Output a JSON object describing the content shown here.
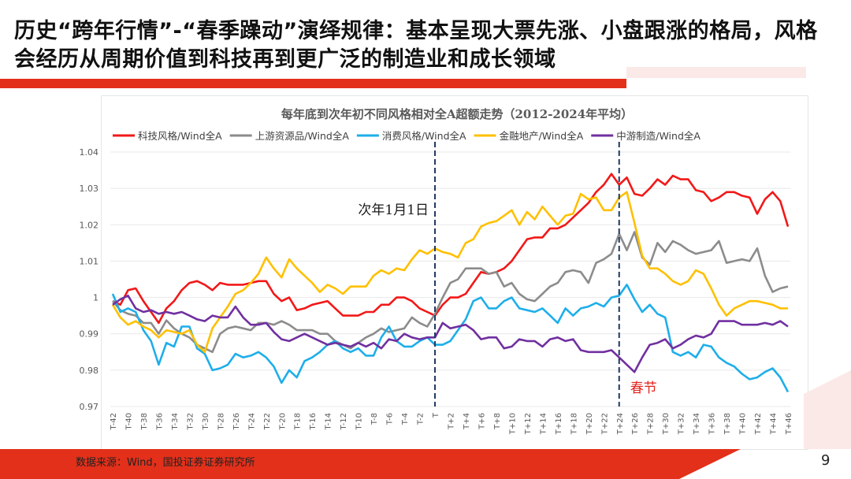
{
  "headline": "历史“跨年行情”-“春季躁动”演绎规律：基本呈现大票先涨、小盘跟涨的格局，风格会经历从周期价值到科技再到更广泛的制造业和成长领域",
  "footer": {
    "source": "数据来源：Wind，国投证券证券研究所",
    "page_number": "9"
  },
  "chart_data": {
    "type": "line",
    "title": "每年底到次年初不同风格相对全A超额走势（2012-2024年平均）",
    "xlabel": "",
    "ylabel": "",
    "ylim": [
      0.97,
      1.04
    ],
    "yticks": [
      0.97,
      0.98,
      0.99,
      1.0,
      1.01,
      1.02,
      1.03,
      1.04
    ],
    "ytick_labels": [
      "0.97",
      "0.98",
      "0.99",
      "1",
      "1.01",
      "1.02",
      "1.03",
      "1.04"
    ],
    "x_offset_range": [
      -42,
      46
    ],
    "legend_placement": "top",
    "grid": true,
    "annotations": [
      {
        "text": "次年1月1日",
        "x": "T",
        "color": "#1a1a1a"
      },
      {
        "text": "春节",
        "x": "T+24",
        "color": "#e3231c"
      }
    ],
    "vlines": [
      "T",
      "T+24"
    ],
    "series": [
      {
        "name": "科技风格/Wind全A",
        "color": "#f21818",
        "values": [
          0.999,
          0.998,
          1.002,
          1.0025,
          0.999,
          0.996,
          0.993,
          0.997,
          0.999,
          1.002,
          1.004,
          1.0045,
          1.0035,
          1.002,
          1.004,
          1.0035,
          1.0035,
          1.0035,
          1.004,
          1.0045,
          1.0045,
          1.001,
          0.999,
          1.0,
          0.9965,
          0.997,
          0.998,
          0.9985,
          0.999,
          0.997,
          0.995,
          0.995,
          0.995,
          0.996,
          0.996,
          0.998,
          0.998,
          1.0,
          1.0,
          0.999,
          0.997,
          0.996,
          0.995,
          0.998,
          1.0,
          1.0,
          1.001,
          1.004,
          1.007,
          1.0065,
          1.007,
          1.008,
          1.01,
          1.013,
          1.016,
          1.0165,
          1.0165,
          1.019,
          1.019,
          1.02,
          1.022,
          1.024,
          1.026,
          1.029,
          1.031,
          1.034,
          1.031,
          1.033,
          1.0285,
          1.028,
          1.03,
          1.0325,
          1.031,
          1.0335,
          1.0325,
          1.0325,
          1.0295,
          1.029,
          1.0265,
          1.0275,
          1.029,
          1.029,
          1.028,
          1.0275,
          1.023,
          1.027,
          1.029,
          1.0265,
          1.0195
        ]
      },
      {
        "name": "上游资源品/Wind全A",
        "color": "#8c8c8c",
        "values": [
          0.999,
          0.9965,
          0.9955,
          0.995,
          0.993,
          0.993,
          0.99,
          0.9937,
          0.9915,
          0.99,
          0.989,
          0.987,
          0.986,
          0.985,
          0.99,
          0.9915,
          0.992,
          0.9915,
          0.991,
          0.993,
          0.993,
          0.9925,
          0.9935,
          0.9925,
          0.991,
          0.991,
          0.991,
          0.99,
          0.99,
          0.988,
          0.987,
          0.986,
          0.9875,
          0.989,
          0.99,
          0.9915,
          0.9905,
          0.991,
          0.9915,
          0.9945,
          0.993,
          0.992,
          0.9955,
          1.0,
          1.004,
          1.005,
          1.008,
          1.008,
          1.008,
          1.0065,
          1.007,
          1.003,
          1.004,
          1.001,
          0.9995,
          0.999,
          1.001,
          1.003,
          1.004,
          1.007,
          1.0075,
          1.007,
          1.004,
          1.0095,
          1.0105,
          1.012,
          1.0175,
          1.013,
          1.018,
          1.011,
          1.009,
          1.015,
          1.0125,
          1.0155,
          1.0145,
          1.013,
          1.012,
          1.0125,
          1.013,
          1.0155,
          1.0095,
          1.01,
          1.0105,
          1.01,
          1.0135,
          1.006,
          1.0015,
          1.0025,
          1.003
        ]
      },
      {
        "name": "消费风格/Wind全A",
        "color": "#1eaeea",
        "values": [
          1.001,
          0.996,
          0.997,
          0.996,
          0.991,
          0.988,
          0.9815,
          0.9875,
          0.9865,
          0.992,
          0.992,
          0.986,
          0.9845,
          0.98,
          0.9805,
          0.9815,
          0.9845,
          0.9835,
          0.984,
          0.985,
          0.9835,
          0.981,
          0.9765,
          0.98,
          0.978,
          0.9825,
          0.9835,
          0.985,
          0.987,
          0.988,
          0.986,
          0.985,
          0.986,
          0.984,
          0.984,
          0.989,
          0.992,
          0.988,
          0.9865,
          0.9865,
          0.988,
          0.989,
          0.987,
          0.987,
          0.988,
          0.991,
          0.994,
          0.999,
          1.0,
          0.997,
          0.997,
          0.999,
          1.0,
          0.997,
          0.9965,
          0.996,
          0.997,
          0.995,
          0.993,
          0.997,
          0.995,
          0.997,
          0.9975,
          0.9985,
          0.9975,
          1.0,
          1.0005,
          1.0035,
          0.9995,
          0.996,
          0.998,
          0.9955,
          0.9945,
          0.985,
          0.984,
          0.985,
          0.9835,
          0.987,
          0.9865,
          0.9835,
          0.982,
          0.981,
          0.979,
          0.9775,
          0.978,
          0.9795,
          0.9805,
          0.978,
          0.974
        ]
      },
      {
        "name": "金融地产/Wind全A",
        "color": "#ffc000",
        "values": [
          0.998,
          0.9945,
          0.9925,
          0.9935,
          0.992,
          0.991,
          0.989,
          0.991,
          0.9905,
          0.99,
          0.991,
          0.987,
          0.985,
          0.9915,
          0.9945,
          0.9975,
          1.001,
          1.002,
          1.004,
          1.0065,
          1.011,
          1.008,
          1.0055,
          1.0105,
          1.008,
          1.006,
          1.004,
          1.0015,
          1.0035,
          1.0025,
          1.001,
          1.003,
          1.003,
          1.003,
          1.006,
          1.0075,
          1.0065,
          1.008,
          1.0075,
          1.0105,
          1.013,
          1.012,
          1.0135,
          1.0125,
          1.012,
          1.011,
          1.015,
          1.016,
          1.0195,
          1.0205,
          1.021,
          1.0225,
          1.024,
          1.02,
          1.0235,
          1.0215,
          1.025,
          1.0225,
          1.02,
          1.0225,
          1.023,
          1.0285,
          1.027,
          1.0275,
          1.024,
          1.024,
          1.0275,
          1.029,
          1.0205,
          1.0115,
          1.008,
          1.008,
          1.0065,
          1.0045,
          1.0035,
          1.0045,
          1.0075,
          1.0065,
          1.0025,
          0.998,
          0.995,
          0.997,
          0.998,
          0.999,
          0.999,
          0.9985,
          0.998,
          0.997,
          0.997
        ]
      },
      {
        "name": "中游制造/Wind全A",
        "color": "#7030a0",
        "values": [
          0.998,
          0.9995,
          1.0005,
          0.997,
          0.996,
          0.9965,
          0.9955,
          0.996,
          0.9955,
          0.996,
          0.995,
          0.994,
          0.9935,
          0.995,
          0.9945,
          0.9945,
          0.9975,
          0.9945,
          0.9925,
          0.9925,
          0.993,
          0.9905,
          0.9885,
          0.988,
          0.989,
          0.99,
          0.989,
          0.988,
          0.987,
          0.9875,
          0.987,
          0.9865,
          0.9875,
          0.9865,
          0.9875,
          0.986,
          0.9885,
          0.988,
          0.99,
          0.989,
          0.9885,
          0.989,
          0.989,
          0.993,
          0.9915,
          0.992,
          0.9925,
          0.991,
          0.9885,
          0.989,
          0.989,
          0.986,
          0.9865,
          0.9885,
          0.988,
          0.988,
          0.9865,
          0.9885,
          0.989,
          0.988,
          0.9885,
          0.9855,
          0.985,
          0.985,
          0.985,
          0.9855,
          0.9835,
          0.9815,
          0.9795,
          0.9835,
          0.987,
          0.9875,
          0.9885,
          0.986,
          0.987,
          0.9885,
          0.9895,
          0.989,
          0.99,
          0.9935,
          0.9935,
          0.9935,
          0.9925,
          0.9925,
          0.9925,
          0.993,
          0.9925,
          0.9935,
          0.992
        ]
      }
    ]
  }
}
